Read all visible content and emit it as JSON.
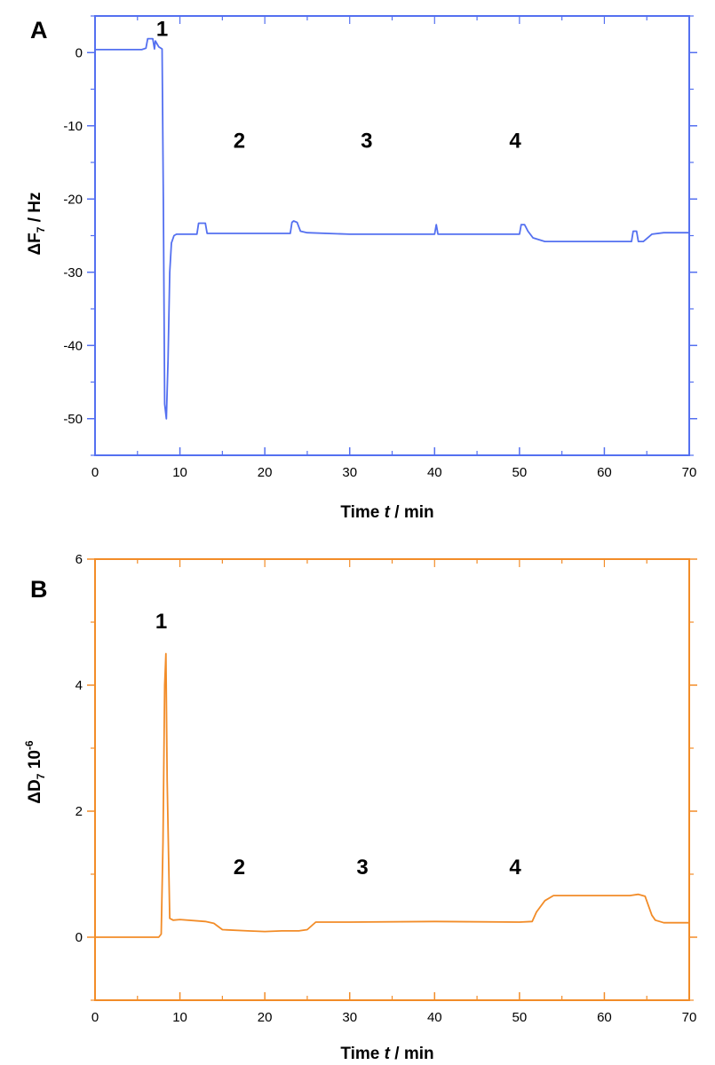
{
  "chart_data": [
    {
      "type": "line",
      "panel_label": "A",
      "color": "#5470F0",
      "title": "",
      "xlabel_parts": [
        "Time ",
        "t",
        " / min"
      ],
      "ylabel_parts": [
        "ΔF",
        "7",
        " / Hz"
      ],
      "xlim": [
        0,
        70
      ],
      "ylim": [
        -55,
        5
      ],
      "x_ticks": [
        0,
        10,
        20,
        30,
        40,
        50,
        60,
        70
      ],
      "y_ticks": [
        0,
        -10,
        -20,
        -30,
        -40,
        -50
      ],
      "grid": false,
      "annotations": [
        {
          "text": "1",
          "x": 7.9,
          "y": 2.3
        },
        {
          "text": "2",
          "x": 17,
          "y": -13
        },
        {
          "text": "3",
          "x": 32,
          "y": -13
        },
        {
          "text": "4",
          "x": 49.5,
          "y": -13
        }
      ],
      "series": [
        {
          "x": [
            0,
            5.5,
            6,
            6.2,
            6.8,
            7,
            7.1,
            7.5,
            7.9,
            8.05,
            8.2,
            8.4,
            8.6,
            8.8,
            9,
            9.3,
            9.6,
            10,
            12,
            12.2,
            12.4,
            13,
            13.2,
            23,
            23.2,
            23.4,
            23.8,
            24.2,
            25,
            30,
            40,
            40.2,
            40.4,
            40.6,
            45,
            50,
            50.2,
            50.6,
            51,
            51.6,
            53,
            55,
            60,
            63.2,
            63.4,
            63.8,
            64,
            64.6,
            65.6,
            67,
            70
          ],
          "y": [
            0.4,
            0.4,
            0.6,
            1.9,
            1.9,
            0.5,
            1.6,
            0.8,
            0.5,
            -20,
            -48,
            -50,
            -42,
            -30,
            -26,
            -25,
            -24.8,
            -24.8,
            -24.8,
            -23.3,
            -23.3,
            -23.3,
            -24.7,
            -24.7,
            -23.2,
            -23,
            -23.2,
            -24.4,
            -24.6,
            -24.8,
            -24.8,
            -23.5,
            -24.8,
            -24.8,
            -24.8,
            -24.8,
            -23.5,
            -23.5,
            -24.4,
            -25.3,
            -25.8,
            -25.8,
            -25.8,
            -25.8,
            -24.4,
            -24.4,
            -25.8,
            -25.8,
            -24.8,
            -24.6,
            -24.6
          ]
        }
      ]
    },
    {
      "type": "line",
      "panel_label": "B",
      "color": "#F28C28",
      "title": "",
      "xlabel_parts": [
        "Time ",
        "t",
        " / min"
      ],
      "ylabel_parts": [
        "ΔD",
        "7",
        " 10",
        "-6"
      ],
      "xlim": [
        0,
        70
      ],
      "ylim": [
        -1,
        6
      ],
      "x_ticks": [
        0,
        10,
        20,
        30,
        40,
        50,
        60,
        70
      ],
      "y_ticks": [
        0,
        2,
        4,
        6
      ],
      "grid": false,
      "annotations": [
        {
          "text": "1",
          "x": 7.8,
          "y": 4.9
        },
        {
          "text": "2",
          "x": 17,
          "y": 1.0
        },
        {
          "text": "3",
          "x": 31.5,
          "y": 1.0
        },
        {
          "text": "4",
          "x": 49.5,
          "y": 1.0
        }
      ],
      "series": [
        {
          "x": [
            0,
            4,
            7.5,
            7.8,
            8,
            8.2,
            8.35,
            8.5,
            8.8,
            9.2,
            10,
            13,
            14,
            15,
            18,
            20,
            22,
            24,
            25,
            26,
            30,
            40,
            50,
            51.5,
            52,
            53,
            54,
            55,
            60,
            63,
            64,
            64.8,
            65.6,
            66,
            67,
            70
          ],
          "y": [
            0,
            0,
            0,
            0.05,
            1.5,
            4.0,
            4.5,
            2.5,
            0.3,
            0.27,
            0.28,
            0.25,
            0.22,
            0.12,
            0.1,
            0.09,
            0.1,
            0.1,
            0.12,
            0.24,
            0.24,
            0.25,
            0.24,
            0.25,
            0.4,
            0.58,
            0.66,
            0.66,
            0.66,
            0.66,
            0.68,
            0.65,
            0.35,
            0.27,
            0.23,
            0.23
          ]
        }
      ]
    }
  ]
}
